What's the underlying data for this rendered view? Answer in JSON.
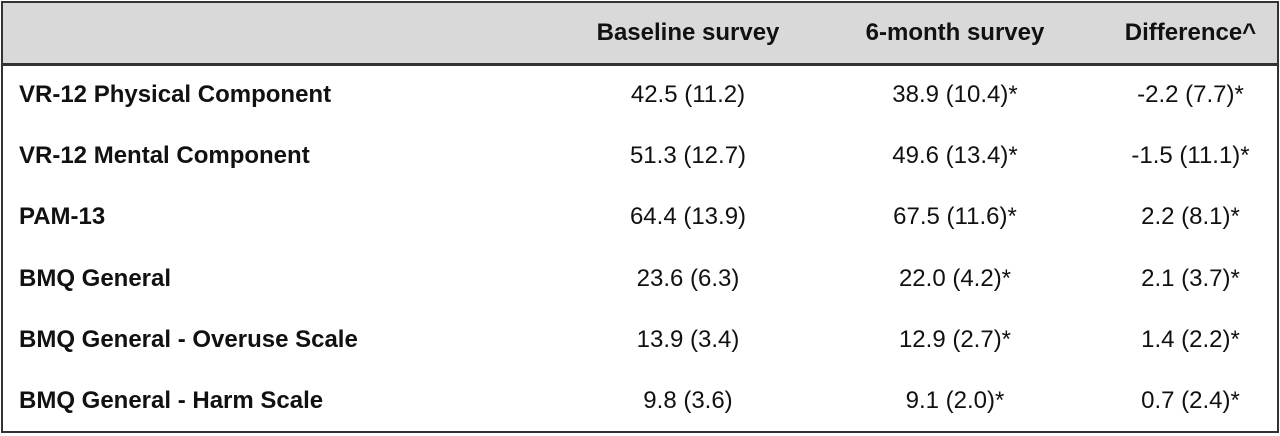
{
  "table": {
    "header": [
      "Baseline survey",
      "6-month survey",
      "Difference^"
    ],
    "rows": [
      [
        "VR-12 Physical Component",
        "42.5 (11.2)",
        "38.9 (10.4)*",
        "-2.2 (7.7)*"
      ],
      [
        "VR-12 Mental Component",
        "51.3 (12.7)",
        "49.6 (13.4)*",
        "-1.5 (11.1)*"
      ],
      [
        "PAM-13",
        "64.4 (13.9)",
        "67.5 (11.6)*",
        "2.2 (8.1)*"
      ],
      [
        "BMQ General",
        "23.6 (6.3)",
        "22.0 (4.2)*",
        "2.1 (3.7)*"
      ],
      [
        "BMQ General - Overuse Scale",
        "13.9 (3.4)",
        "12.9 (2.7)*",
        "1.4 (2.2)*"
      ],
      [
        "BMQ General - Harm Scale",
        "9.8 (3.6)",
        "9.1 (2.0)*",
        "0.7 (2.4)*"
      ]
    ]
  }
}
